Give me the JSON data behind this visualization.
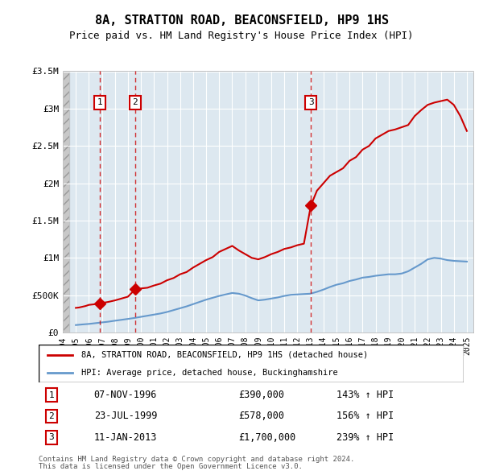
{
  "title": "8A, STRATTON ROAD, BEACONSFIELD, HP9 1HS",
  "subtitle": "Price paid vs. HM Land Registry's House Price Index (HPI)",
  "legend_line1": "8A, STRATTON ROAD, BEACONSFIELD, HP9 1HS (detached house)",
  "legend_line2": "HPI: Average price, detached house, Buckinghamshire",
  "footer_line1": "Contains HM Land Registry data © Crown copyright and database right 2024.",
  "footer_line2": "This data is licensed under the Open Government Licence v3.0.",
  "sale_labels": [
    {
      "num": 1,
      "date": "07-NOV-1996",
      "price": "£390,000",
      "hpi": "143% ↑ HPI",
      "year": 1996.85
    },
    {
      "num": 2,
      "date": "23-JUL-1999",
      "price": "£578,000",
      "hpi": "156% ↑ HPI",
      "year": 1999.55
    },
    {
      "num": 3,
      "date": "11-JAN-2013",
      "price": "£1,700,000",
      "hpi": "239% ↑ HPI",
      "year": 2013.03
    }
  ],
  "sale_values": [
    390000,
    578000,
    1700000
  ],
  "sale_years": [
    1996.85,
    1999.55,
    2013.03
  ],
  "red_color": "#cc0000",
  "blue_color": "#6699cc",
  "background_plot": "#dde8f0",
  "background_hatch": "#cccccc",
  "grid_color": "#ffffff",
  "hatch_end_year": 1994.5,
  "xmin": 1994.0,
  "xmax": 2025.5,
  "ymin": 0,
  "ymax": 3500000,
  "yticks": [
    0,
    500000,
    1000000,
    1500000,
    2000000,
    2500000,
    3000000,
    3500000
  ],
  "ytick_labels": [
    "£0",
    "£500K",
    "£1M",
    "£1.5M",
    "£2M",
    "£2.5M",
    "£3M",
    "£3.5M"
  ],
  "xticks": [
    1994,
    1995,
    1996,
    1997,
    1998,
    1999,
    2000,
    2001,
    2002,
    2003,
    2004,
    2005,
    2006,
    2007,
    2008,
    2009,
    2010,
    2011,
    2012,
    2013,
    2014,
    2015,
    2016,
    2017,
    2018,
    2019,
    2020,
    2021,
    2022,
    2023,
    2024,
    2025
  ],
  "red_x": [
    1995.0,
    1995.25,
    1995.5,
    1995.75,
    1996.0,
    1996.25,
    1996.5,
    1996.85,
    1997.0,
    1997.5,
    1998.0,
    1998.5,
    1999.0,
    1999.55,
    2000.0,
    2000.5,
    2001.0,
    2001.5,
    2002.0,
    2002.5,
    2003.0,
    2003.5,
    2004.0,
    2004.5,
    2005.0,
    2005.5,
    2006.0,
    2006.5,
    2007.0,
    2007.5,
    2008.0,
    2008.5,
    2009.0,
    2009.5,
    2010.0,
    2010.5,
    2011.0,
    2011.5,
    2012.0,
    2012.5,
    2013.03,
    2013.5,
    2014.0,
    2014.5,
    2015.0,
    2015.5,
    2016.0,
    2016.5,
    2017.0,
    2017.5,
    2018.0,
    2018.5,
    2019.0,
    2019.5,
    2020.0,
    2020.5,
    2021.0,
    2021.5,
    2022.0,
    2022.5,
    2023.0,
    2023.5,
    2024.0,
    2024.5,
    2025.0
  ],
  "red_y": [
    330000,
    335000,
    345000,
    355000,
    370000,
    375000,
    380000,
    390000,
    395000,
    410000,
    430000,
    455000,
    480000,
    578000,
    590000,
    600000,
    630000,
    655000,
    700000,
    730000,
    780000,
    810000,
    870000,
    920000,
    970000,
    1010000,
    1080000,
    1120000,
    1160000,
    1100000,
    1050000,
    1000000,
    980000,
    1010000,
    1050000,
    1080000,
    1120000,
    1140000,
    1170000,
    1190000,
    1700000,
    1900000,
    2000000,
    2100000,
    2150000,
    2200000,
    2300000,
    2350000,
    2450000,
    2500000,
    2600000,
    2650000,
    2700000,
    2720000,
    2750000,
    2780000,
    2900000,
    2980000,
    3050000,
    3080000,
    3100000,
    3120000,
    3050000,
    2900000,
    2700000
  ],
  "blue_x": [
    1995.0,
    1995.5,
    1996.0,
    1996.5,
    1997.0,
    1997.5,
    1998.0,
    1998.5,
    1999.0,
    1999.5,
    2000.0,
    2000.5,
    2001.0,
    2001.5,
    2002.0,
    2002.5,
    2003.0,
    2003.5,
    2004.0,
    2004.5,
    2005.0,
    2005.5,
    2006.0,
    2006.5,
    2007.0,
    2007.5,
    2008.0,
    2008.5,
    2009.0,
    2009.5,
    2010.0,
    2010.5,
    2011.0,
    2011.5,
    2012.0,
    2012.5,
    2013.0,
    2013.5,
    2014.0,
    2014.5,
    2015.0,
    2015.5,
    2016.0,
    2016.5,
    2017.0,
    2017.5,
    2018.0,
    2018.5,
    2019.0,
    2019.5,
    2020.0,
    2020.5,
    2021.0,
    2021.5,
    2022.0,
    2022.5,
    2023.0,
    2023.5,
    2024.0,
    2024.5,
    2025.0
  ],
  "blue_y": [
    100000,
    108000,
    115000,
    125000,
    135000,
    145000,
    158000,
    170000,
    182000,
    195000,
    210000,
    225000,
    240000,
    255000,
    275000,
    300000,
    325000,
    350000,
    380000,
    410000,
    440000,
    465000,
    490000,
    510000,
    530000,
    520000,
    495000,
    460000,
    430000,
    440000,
    455000,
    470000,
    490000,
    505000,
    510000,
    515000,
    520000,
    545000,
    575000,
    610000,
    640000,
    660000,
    690000,
    710000,
    735000,
    745000,
    760000,
    770000,
    780000,
    780000,
    790000,
    820000,
    870000,
    920000,
    980000,
    1000000,
    990000,
    970000,
    960000,
    955000,
    950000
  ]
}
